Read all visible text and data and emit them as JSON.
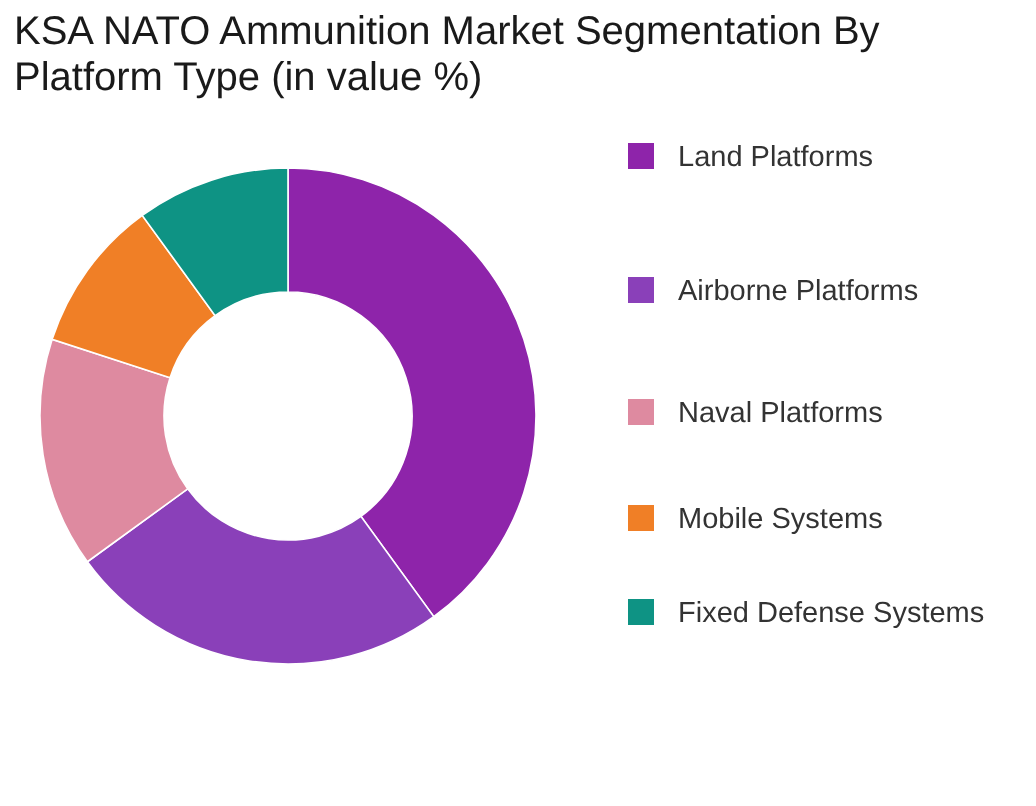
{
  "chart_data": {
    "type": "donut",
    "title": "KSA NATO Ammunition Market Segmentation By Platform Type (in value %)",
    "categories": [
      "Land Platforms",
      "Airborne Platforms",
      "Naval Platforms",
      "Mobile Systems",
      "Fixed Defense Systems"
    ],
    "values": [
      40,
      25,
      15,
      10,
      10
    ],
    "colors": [
      "#8e24aa",
      "#8a40b9",
      "#de8aa0",
      "#f07f26",
      "#0e9384"
    ],
    "legend": "right"
  }
}
